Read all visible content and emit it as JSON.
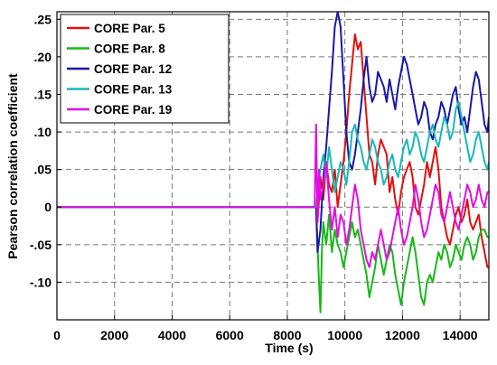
{
  "chart_data": {
    "type": "line",
    "title": "",
    "xlabel": "Time (s)",
    "ylabel": "Pearson correlation coefficient",
    "xlim": [
      0,
      15000
    ],
    "ylim": [
      -0.15,
      0.26
    ],
    "grid": true,
    "legend_position": "top-left",
    "x_ticks": [
      {
        "value": 0,
        "label": "0"
      },
      {
        "value": 2000,
        "label": "2000"
      },
      {
        "value": 4000,
        "label": "4000"
      },
      {
        "value": 6000,
        "label": "6000"
      },
      {
        "value": 8000,
        "label": "8000"
      },
      {
        "value": 10000,
        "label": "10000"
      },
      {
        "value": 12000,
        "label": "12000"
      },
      {
        "value": 14000,
        "label": "14000"
      }
    ],
    "y_ticks": [
      {
        "value": 0.25,
        "label": ".25"
      },
      {
        "value": 0.2,
        "label": ".20"
      },
      {
        "value": 0.15,
        "label": ".15"
      },
      {
        "value": 0.1,
        "label": ".10"
      },
      {
        "value": 0.05,
        "label": ".05"
      },
      {
        "value": 0,
        "label": "0"
      },
      {
        "value": -0.05,
        "label": "-.05"
      },
      {
        "value": -0.1,
        "label": "-.10"
      }
    ],
    "series": [
      {
        "name": "CORE Par. 5",
        "color": "#e01010",
        "x": [
          0,
          9000,
          9050,
          9150,
          9250,
          9350,
          9450,
          9550,
          9650,
          9750,
          9850,
          9950,
          10050,
          10150,
          10250,
          10350,
          10450,
          10550,
          10650,
          10750,
          10850,
          10950,
          11050,
          11150,
          11250,
          11350,
          11450,
          11550,
          11650,
          11750,
          11850,
          11950,
          12050,
          12150,
          12250,
          12350,
          12450,
          12550,
          12650,
          12750,
          12850,
          12950,
          13050,
          13150,
          13250,
          13350,
          13450,
          13550,
          13650,
          13750,
          13850,
          13950,
          14050,
          14150,
          14250,
          14350,
          14450,
          14550,
          14650,
          14750,
          14850,
          14950,
          15000
        ],
        "y": [
          0,
          0,
          -0.02,
          0.04,
          0.01,
          0.06,
          0.03,
          0.02,
          0.05,
          0.0,
          0.03,
          0.06,
          0.1,
          0.15,
          0.19,
          0.23,
          0.21,
          0.22,
          0.17,
          0.12,
          0.07,
          0.06,
          0.03,
          0.07,
          0.09,
          0.08,
          0.07,
          0.02,
          0.04,
          0.01,
          -0.01,
          0.02,
          0.04,
          0.05,
          0.06,
          0.04,
          0.0,
          -0.01,
          0.01,
          0.03,
          0.06,
          0.04,
          0.06,
          0.08,
          0.05,
          0.0,
          -0.02,
          -0.04,
          -0.05,
          -0.03,
          -0.01,
          0.0,
          -0.02,
          -0.01,
          0.01,
          -0.02,
          -0.03,
          -0.02,
          -0.01,
          -0.04,
          -0.06,
          -0.08,
          -0.08
        ]
      },
      {
        "name": "CORE Par. 8",
        "color": "#18b818",
        "x": [
          0,
          9000,
          9050,
          9100,
          9150,
          9200,
          9250,
          9350,
          9450,
          9550,
          9650,
          9750,
          9850,
          9950,
          10050,
          10150,
          10250,
          10350,
          10450,
          10550,
          10650,
          10750,
          10850,
          10950,
          11050,
          11150,
          11250,
          11350,
          11450,
          11550,
          11650,
          11750,
          11850,
          11950,
          12050,
          12150,
          12250,
          12350,
          12450,
          12550,
          12650,
          12750,
          12850,
          12950,
          13050,
          13150,
          13250,
          13350,
          13450,
          13550,
          13650,
          13750,
          13850,
          13950,
          14050,
          14150,
          14250,
          14350,
          14450,
          14550,
          14650,
          14750,
          14850,
          14950,
          15000
        ],
        "y": [
          0,
          0,
          -0.05,
          -0.1,
          -0.14,
          -0.06,
          -0.02,
          -0.05,
          -0.01,
          -0.06,
          -0.03,
          -0.05,
          -0.06,
          -0.08,
          -0.06,
          -0.04,
          -0.02,
          -0.04,
          -0.03,
          -0.05,
          -0.07,
          -0.09,
          -0.12,
          -0.1,
          -0.08,
          -0.05,
          -0.07,
          -0.09,
          -0.07,
          -0.05,
          -0.06,
          -0.09,
          -0.11,
          -0.13,
          -0.1,
          -0.08,
          -0.06,
          -0.04,
          -0.06,
          -0.09,
          -0.12,
          -0.13,
          -0.1,
          -0.09,
          -0.1,
          -0.08,
          -0.06,
          -0.07,
          -0.05,
          -0.06,
          -0.08,
          -0.07,
          -0.05,
          -0.06,
          -0.07,
          -0.05,
          -0.04,
          -0.05,
          -0.07,
          -0.06,
          -0.04,
          -0.03,
          -0.03,
          -0.04,
          -0.04
        ]
      },
      {
        "name": "CORE Par. 12",
        "color": "#1818a8",
        "x": [
          0,
          9000,
          9050,
          9150,
          9250,
          9350,
          9450,
          9550,
          9650,
          9750,
          9850,
          9950,
          10050,
          10150,
          10250,
          10350,
          10450,
          10550,
          10650,
          10750,
          10850,
          10950,
          11050,
          11150,
          11250,
          11350,
          11450,
          11550,
          11650,
          11750,
          11850,
          11950,
          12050,
          12150,
          12250,
          12350,
          12450,
          12550,
          12650,
          12750,
          12850,
          12950,
          13050,
          13150,
          13250,
          13350,
          13450,
          13550,
          13650,
          13750,
          13850,
          13950,
          14050,
          14150,
          14250,
          14350,
          14450,
          14550,
          14650,
          14750,
          14850,
          14950,
          15000
        ],
        "y": [
          0,
          0,
          -0.06,
          -0.03,
          0.04,
          0.08,
          0.13,
          0.18,
          0.24,
          0.26,
          0.24,
          0.17,
          0.1,
          0.06,
          0.05,
          0.07,
          0.1,
          0.13,
          0.17,
          0.2,
          0.16,
          0.14,
          0.15,
          0.18,
          0.17,
          0.16,
          0.14,
          0.17,
          0.15,
          0.13,
          0.16,
          0.18,
          0.2,
          0.19,
          0.17,
          0.15,
          0.13,
          0.11,
          0.12,
          0.14,
          0.13,
          0.1,
          0.09,
          0.11,
          0.12,
          0.14,
          0.13,
          0.11,
          0.13,
          0.15,
          0.16,
          0.13,
          0.11,
          0.12,
          0.1,
          0.13,
          0.16,
          0.18,
          0.17,
          0.14,
          0.11,
          0.1,
          0.12
        ]
      },
      {
        "name": "CORE Par. 13",
        "color": "#18b8b8",
        "x": [
          0,
          9000,
          9050,
          9150,
          9250,
          9350,
          9450,
          9550,
          9650,
          9750,
          9850,
          9950,
          10050,
          10150,
          10250,
          10350,
          10450,
          10550,
          10650,
          10750,
          10850,
          10950,
          11050,
          11150,
          11250,
          11350,
          11450,
          11550,
          11650,
          11750,
          11850,
          11950,
          12050,
          12150,
          12250,
          12350,
          12450,
          12550,
          12650,
          12750,
          12850,
          12950,
          13050,
          13150,
          13250,
          13350,
          13450,
          13550,
          13650,
          13750,
          13850,
          13950,
          14050,
          14150,
          14250,
          14350,
          14450,
          14550,
          14650,
          14750,
          14850,
          14950,
          15000
        ],
        "y": [
          0,
          0,
          0.02,
          0.05,
          0.07,
          0.04,
          0.08,
          0.05,
          0.02,
          0.04,
          0.06,
          0.05,
          0.03,
          0.06,
          0.1,
          0.11,
          0.09,
          0.08,
          0.06,
          0.05,
          0.07,
          0.09,
          0.08,
          0.06,
          0.05,
          0.03,
          0.04,
          0.06,
          0.07,
          0.05,
          0.04,
          0.06,
          0.08,
          0.09,
          0.07,
          0.08,
          0.1,
          0.09,
          0.07,
          0.06,
          0.08,
          0.1,
          0.11,
          0.09,
          0.08,
          0.1,
          0.12,
          0.11,
          0.09,
          0.1,
          0.13,
          0.14,
          0.12,
          0.1,
          0.08,
          0.06,
          0.07,
          0.09,
          0.1,
          0.08,
          0.06,
          0.05,
          0.06
        ]
      },
      {
        "name": "CORE Par. 19",
        "color": "#e010e0",
        "x": [
          0,
          8950,
          9000,
          9050,
          9100,
          9150,
          9250,
          9350,
          9450,
          9550,
          9650,
          9750,
          9850,
          9950,
          10050,
          10150,
          10250,
          10350,
          10450,
          10550,
          10650,
          10750,
          10850,
          10950,
          11050,
          11150,
          11250,
          11350,
          11450,
          11550,
          11650,
          11750,
          11850,
          11950,
          12050,
          12150,
          12250,
          12350,
          12450,
          12550,
          12650,
          12750,
          12850,
          12950,
          13050,
          13150,
          13250,
          13350,
          13450,
          13550,
          13650,
          13750,
          13850,
          13950,
          14050,
          14150,
          14250,
          14350,
          14450,
          14550,
          14650,
          14750,
          14850,
          14950,
          15000
        ],
        "y": [
          0,
          0,
          0.11,
          -0.02,
          0.05,
          0.01,
          0.03,
          0.06,
          0.01,
          -0.03,
          0.0,
          -0.04,
          -0.01,
          -0.02,
          -0.05,
          -0.03,
          0.0,
          0.03,
          0.01,
          -0.03,
          -0.05,
          -0.07,
          -0.08,
          -0.06,
          -0.07,
          -0.05,
          -0.03,
          -0.05,
          -0.07,
          -0.06,
          -0.04,
          -0.02,
          0.0,
          -0.03,
          -0.05,
          -0.04,
          -0.02,
          0.0,
          0.03,
          0.01,
          -0.02,
          -0.04,
          -0.03,
          -0.01,
          0.01,
          0.03,
          0.02,
          -0.01,
          -0.02,
          0.0,
          0.02,
          0.0,
          -0.02,
          -0.03,
          -0.01,
          0.01,
          0.03,
          0.02,
          0.0,
          0.01,
          0.03,
          0.01,
          0.0,
          0.02,
          0.02
        ]
      }
    ]
  }
}
